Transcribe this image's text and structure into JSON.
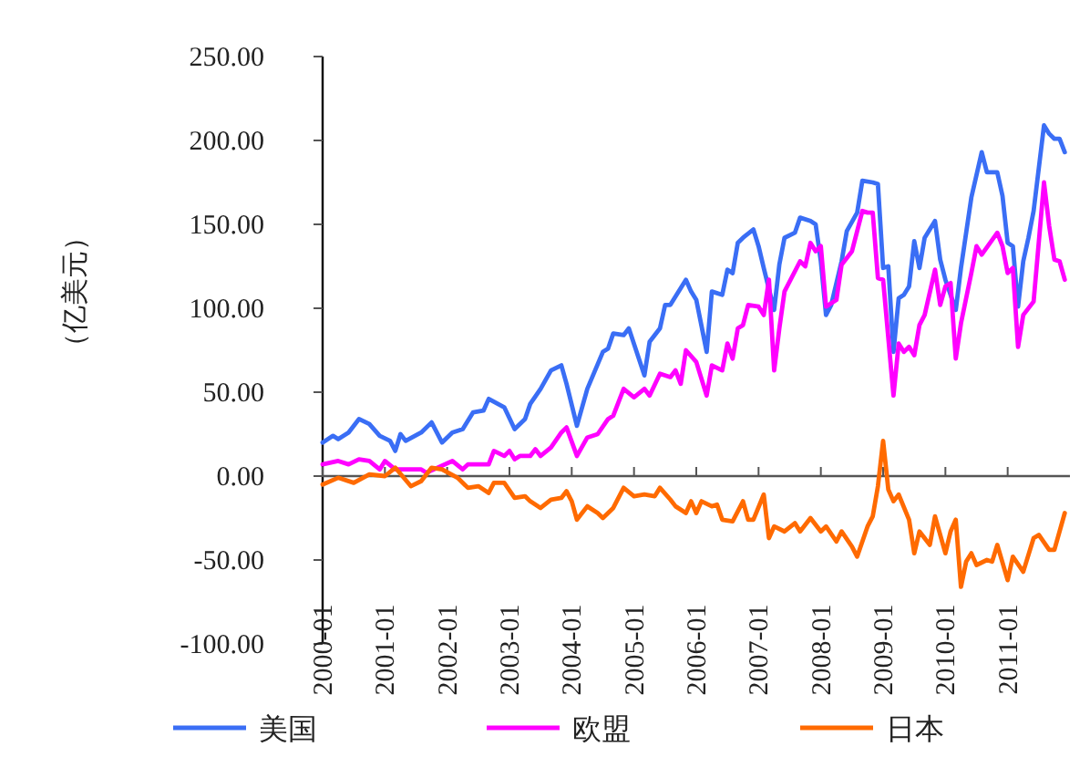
{
  "chart_data": {
    "type": "line",
    "ylabel": "（亿美元）",
    "legend": "bottom",
    "xlim": [
      "2000-01",
      "2012-01"
    ],
    "xticks": [
      {
        "value": "2000-01",
        "label": "2000-01"
      },
      {
        "value": "2001-01",
        "label": "2001-01"
      },
      {
        "value": "2002-01",
        "label": "2002-01"
      },
      {
        "value": "2003-01",
        "label": "2003-01"
      },
      {
        "value": "2004-01",
        "label": "2004-01"
      },
      {
        "value": "2005-01",
        "label": "2005-01"
      },
      {
        "value": "2006-01",
        "label": "2006-01"
      },
      {
        "value": "2007-01",
        "label": "2007-01"
      },
      {
        "value": "2008-01",
        "label": "2008-01"
      },
      {
        "value": "2009-01",
        "label": "2009-01"
      },
      {
        "value": "2010-01",
        "label": "2010-01"
      },
      {
        "value": "2011-01",
        "label": "2011-01"
      }
    ],
    "ylim": [
      -100,
      250
    ],
    "yticks": [
      {
        "value": -100,
        "label": "-100.00"
      },
      {
        "value": -50,
        "label": "-50.00"
      },
      {
        "value": 0,
        "label": "0.00"
      },
      {
        "value": 50,
        "label": "50.00"
      },
      {
        "value": 100,
        "label": "100.00"
      },
      {
        "value": 150,
        "label": "150.00"
      },
      {
        "value": 200,
        "label": "200.00"
      },
      {
        "value": 250,
        "label": "250.00"
      }
    ],
    "series": [
      {
        "name": "美国",
        "color": "#3a6ef5",
        "x": [
          "2000-01",
          "2000-03",
          "2000-04",
          "2000-06",
          "2000-08",
          "2000-10",
          "2000-12",
          "2001-02",
          "2001-03",
          "2001-04",
          "2001-05",
          "2001-08",
          "2001-10",
          "2001-12",
          "2002-02",
          "2002-04",
          "2002-06",
          "2002-08",
          "2002-09",
          "2002-12",
          "2003-02",
          "2003-04",
          "2003-05",
          "2003-07",
          "2003-09",
          "2003-11",
          "2003-12",
          "2004-02",
          "2004-04",
          "2004-07",
          "2004-08",
          "2004-09",
          "2004-11",
          "2004-12",
          "2005-03",
          "2005-04",
          "2005-06",
          "2005-07",
          "2005-08",
          "2005-11",
          "2005-12",
          "2006-01",
          "2006-03",
          "2006-04",
          "2006-06",
          "2006-07",
          "2006-08",
          "2006-09",
          "2006-10",
          "2006-12",
          "2007-01",
          "2007-02",
          "2007-04",
          "2007-05",
          "2007-06",
          "2007-08",
          "2007-09",
          "2007-11",
          "2007-12",
          "2008-01",
          "2008-02",
          "2008-03",
          "2008-05",
          "2008-06",
          "2008-08",
          "2008-09",
          "2008-11",
          "2008-12",
          "2009-01",
          "2009-02",
          "2009-03",
          "2009-04",
          "2009-05",
          "2009-06",
          "2009-07",
          "2009-08",
          "2009-09",
          "2009-11",
          "2009-12",
          "2010-01",
          "2010-03",
          "2010-04",
          "2010-06",
          "2010-08",
          "2010-09",
          "2010-11",
          "2010-12",
          "2011-01",
          "2011-02",
          "2011-03",
          "2011-04",
          "2011-05",
          "2011-06",
          "2011-08",
          "2011-09",
          "2011-10",
          "2011-11",
          "2011-12"
        ],
        "values": [
          20,
          24,
          22,
          26,
          34,
          31,
          24,
          21,
          15,
          25,
          21,
          26,
          32,
          20,
          26,
          28,
          38,
          39,
          46,
          41,
          28,
          34,
          43,
          52,
          63,
          66,
          55,
          30,
          52,
          74,
          76,
          85,
          84,
          88,
          60,
          80,
          88,
          102,
          102,
          117,
          110,
          105,
          74,
          110,
          108,
          123,
          121,
          139,
          142,
          147,
          137,
          124,
          99,
          126,
          142,
          145,
          154,
          152,
          150,
          128,
          96,
          102,
          128,
          146,
          157,
          176,
          175,
          174,
          124,
          125,
          74,
          106,
          108,
          113,
          140,
          124,
          142,
          152,
          129,
          117,
          99,
          124,
          166,
          193,
          181,
          181,
          167,
          139,
          137,
          101,
          128,
          142,
          158,
          209,
          204,
          201,
          201,
          193
        ]
      },
      {
        "name": "欧盟",
        "color": "#ff00ff",
        "x": [
          "2000-01",
          "2000-04",
          "2000-06",
          "2000-08",
          "2000-10",
          "2000-12",
          "2001-01",
          "2001-03",
          "2001-08",
          "2001-09",
          "2002-02",
          "2002-04",
          "2002-05",
          "2002-09",
          "2002-10",
          "2002-12",
          "2003-01",
          "2003-02",
          "2003-03",
          "2003-05",
          "2003-06",
          "2003-07",
          "2003-09",
          "2003-11",
          "2003-12",
          "2004-02",
          "2004-04",
          "2004-06",
          "2004-08",
          "2004-09",
          "2004-11",
          "2005-01",
          "2005-03",
          "2005-04",
          "2005-06",
          "2005-08",
          "2005-09",
          "2005-10",
          "2005-11",
          "2006-01",
          "2006-03",
          "2006-04",
          "2006-06",
          "2006-07",
          "2006-08",
          "2006-09",
          "2006-10",
          "2006-11",
          "2007-01",
          "2007-02",
          "2007-03",
          "2007-04",
          "2007-05",
          "2007-06",
          "2007-09",
          "2007-10",
          "2007-11",
          "2007-12",
          "2008-01",
          "2008-02",
          "2008-04",
          "2008-05",
          "2008-07",
          "2008-09",
          "2008-10",
          "2008-11",
          "2008-12",
          "2009-01",
          "2009-03",
          "2009-04",
          "2009-05",
          "2009-06",
          "2009-07",
          "2009-08",
          "2009-09",
          "2009-11",
          "2009-12",
          "2010-01",
          "2010-02",
          "2010-03",
          "2010-04",
          "2010-06",
          "2010-07",
          "2010-08",
          "2010-11",
          "2010-12",
          "2011-01",
          "2011-02",
          "2011-03",
          "2011-04",
          "2011-06",
          "2011-08",
          "2011-09",
          "2011-10",
          "2011-11",
          "2011-12"
        ],
        "values": [
          7,
          9,
          7,
          10,
          9,
          4,
          9,
          4,
          4,
          2,
          9,
          4,
          7,
          7,
          15,
          12,
          15,
          10,
          12,
          12,
          16,
          12,
          17,
          26,
          29,
          12,
          23,
          25,
          34,
          36,
          52,
          47,
          52,
          48,
          61,
          59,
          63,
          55,
          75,
          68,
          48,
          66,
          63,
          79,
          70,
          88,
          90,
          102,
          101,
          96,
          117,
          63,
          88,
          110,
          128,
          125,
          139,
          134,
          137,
          101,
          105,
          126,
          134,
          158,
          157,
          157,
          118,
          117,
          48,
          79,
          74,
          77,
          72,
          90,
          96,
          123,
          102,
          113,
          115,
          70,
          91,
          121,
          137,
          132,
          145,
          137,
          121,
          124,
          77,
          96,
          104,
          175,
          149,
          129,
          128,
          117
        ]
      },
      {
        "name": "日本",
        "color": "#ff6a00",
        "x": [
          "2000-01",
          "2000-04",
          "2000-07",
          "2000-10",
          "2001-01",
          "2001-03",
          "2001-06",
          "2001-08",
          "2001-10",
          "2001-12",
          "2002-03",
          "2002-05",
          "2002-07",
          "2002-09",
          "2002-10",
          "2002-12",
          "2003-02",
          "2003-04",
          "2003-05",
          "2003-07",
          "2003-09",
          "2003-11",
          "2003-12",
          "2004-01",
          "2004-02",
          "2004-04",
          "2004-06",
          "2004-07",
          "2004-09",
          "2004-11",
          "2005-01",
          "2005-03",
          "2005-05",
          "2005-06",
          "2005-08",
          "2005-09",
          "2005-11",
          "2005-12",
          "2006-01",
          "2006-02",
          "2006-04",
          "2006-05",
          "2006-06",
          "2006-08",
          "2006-10",
          "2006-11",
          "2006-12",
          "2007-02",
          "2007-03",
          "2007-04",
          "2007-06",
          "2007-08",
          "2007-09",
          "2007-11",
          "2008-01",
          "2008-02",
          "2008-04",
          "2008-05",
          "2008-07",
          "2008-08",
          "2008-10",
          "2008-11",
          "2008-12",
          "2009-01",
          "2009-02",
          "2009-03",
          "2009-04",
          "2009-06",
          "2009-07",
          "2009-08",
          "2009-10",
          "2009-11",
          "2010-01",
          "2010-02",
          "2010-03",
          "2010-04",
          "2010-05",
          "2010-06",
          "2010-07",
          "2010-09",
          "2010-10",
          "2010-11",
          "2011-01",
          "2011-02",
          "2011-04",
          "2011-06",
          "2011-07",
          "2011-09",
          "2011-10",
          "2011-12"
        ],
        "values": [
          -5,
          -1,
          -4,
          1,
          0,
          5,
          -6,
          -3,
          5,
          4,
          -1,
          -7,
          -6,
          -10,
          -4,
          -4,
          -13,
          -12,
          -15,
          -19,
          -14,
          -13,
          -9,
          -15,
          -26,
          -18,
          -22,
          -25,
          -19,
          -7,
          -12,
          -11,
          -12,
          -7,
          -14,
          -18,
          -22,
          -15,
          -22,
          -15,
          -18,
          -17,
          -26,
          -27,
          -15,
          -26,
          -26,
          -11,
          -37,
          -30,
          -33,
          -28,
          -33,
          -25,
          -33,
          -30,
          -39,
          -33,
          -42,
          -48,
          -30,
          -24,
          -6,
          21,
          -8,
          -15,
          -11,
          -26,
          -46,
          -33,
          -41,
          -24,
          -46,
          -33,
          -26,
          -66,
          -51,
          -46,
          -53,
          -50,
          -51,
          -41,
          -62,
          -48,
          -57,
          -37,
          -35,
          -44,
          -44,
          -22
        ]
      }
    ]
  }
}
